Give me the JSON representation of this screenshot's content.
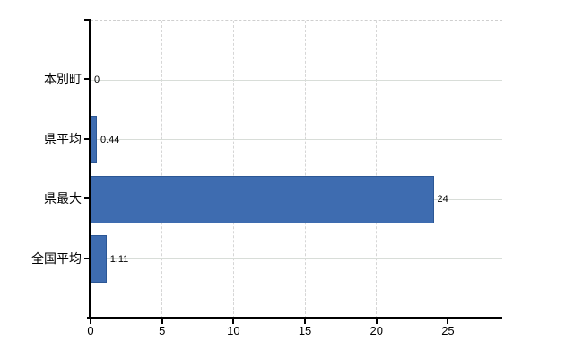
{
  "chart_data": {
    "type": "bar",
    "orientation": "horizontal",
    "categories": [
      "本別町",
      "県平均",
      "県最大",
      "全国平均"
    ],
    "values": [
      0,
      0.44,
      24,
      1.11
    ],
    "value_labels": [
      "0",
      "0.44",
      "24",
      "1.11"
    ],
    "xticks": [
      0,
      5,
      10,
      15,
      20,
      25
    ],
    "xlim": [
      0,
      28.8
    ],
    "grid": "on",
    "legend": "none",
    "bar_color": "#3e6cb0",
    "bar_border_color": "#2c5795",
    "axis_color": "#000000",
    "horizontal_gridline_color": "#d8ddd8",
    "vertical_gridline_color": "#d6d6d6",
    "background_color": "#ffffff"
  }
}
